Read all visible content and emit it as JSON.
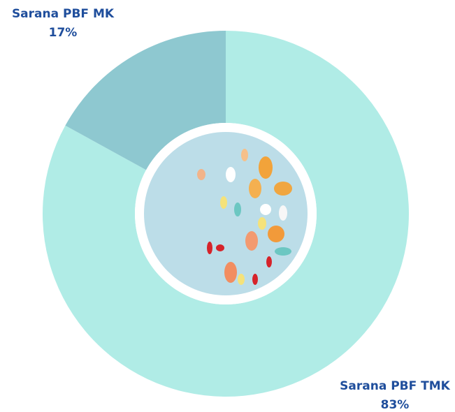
{
  "chart_data": {
    "type": "donut",
    "categories": [
      "Sarana PBF TMK",
      "Sarana PBF MK"
    ],
    "values": [
      83,
      17
    ],
    "value_labels": [
      "83%",
      "17%"
    ],
    "colors": [
      "#b0ece6",
      "#8ec8d0"
    ]
  }
}
